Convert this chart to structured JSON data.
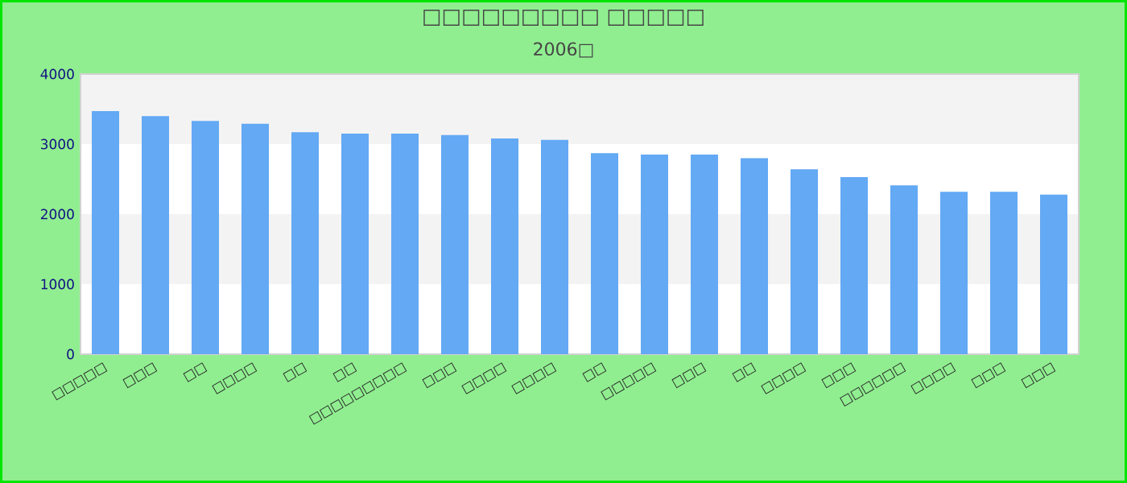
{
  "chart_data": {
    "type": "bar",
    "title": "□□□□□□□□□ □□□□□",
    "subtitle": "2006□",
    "categories": [
      "□□□□□",
      "□□□",
      "□□",
      "□□□□",
      "□□",
      "□□",
      "□□□□□□□□□",
      "□□□",
      "□□□□",
      "□□□□",
      "□□",
      "□□□□□",
      "□□□",
      "□□",
      "□□□□",
      "□□□",
      "□□□□□□",
      "□□□□",
      "□□□",
      "□□□"
    ],
    "values": [
      3470,
      3400,
      3330,
      3290,
      3170,
      3150,
      3150,
      3130,
      3080,
      3060,
      2870,
      2850,
      2850,
      2800,
      2640,
      2530,
      2410,
      2320,
      2320,
      2280
    ],
    "color": "#63a9f4",
    "ylim": [
      0,
      4000
    ],
    "yticks": [
      0,
      1000,
      2000,
      3000,
      4000
    ],
    "bands": [
      {
        "axis": "y",
        "from": 1000,
        "to": 2000,
        "color": "#f3f3f3"
      },
      {
        "axis": "y",
        "from": 3000,
        "to": 4000,
        "color": "#f3f3f3"
      }
    ]
  }
}
